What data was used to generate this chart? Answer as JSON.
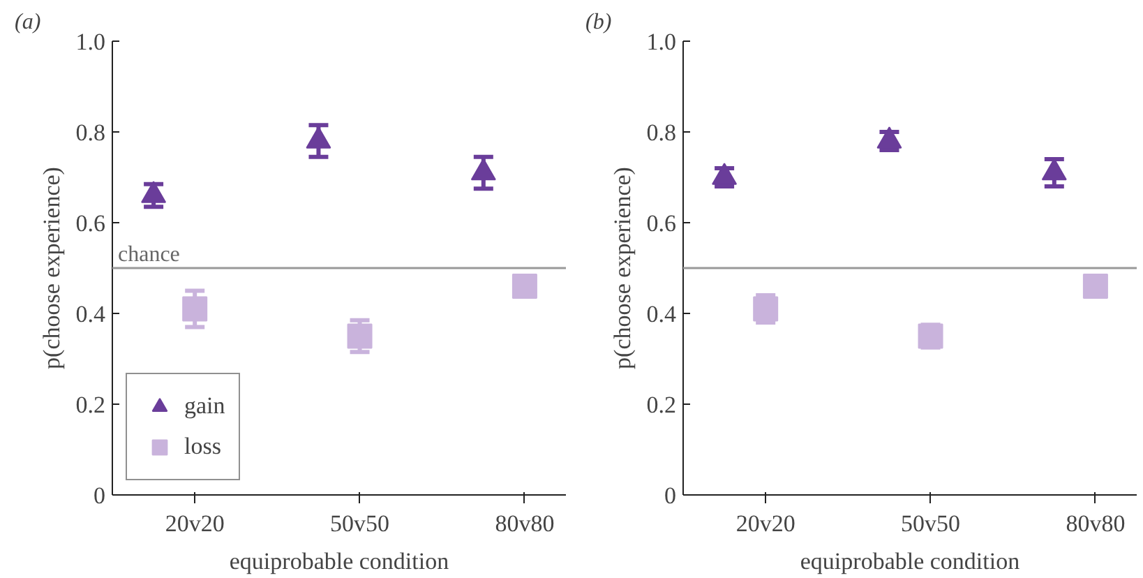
{
  "chart_data": [
    {
      "type": "scatter",
      "title": "(a)",
      "xlabel": "equiprobable condition",
      "ylabel": "p(choose experience)",
      "categories": [
        "20v20",
        "50v50",
        "80v80"
      ],
      "series": [
        {
          "name": "gain",
          "color": "#6a3d9a",
          "marker": "triangle",
          "values": [
            0.66,
            0.78,
            0.71
          ],
          "errors": [
            0.025,
            0.035,
            0.035
          ]
        },
        {
          "name": "loss",
          "color": "#c9b3dc",
          "marker": "square",
          "values": [
            0.41,
            0.35,
            0.46
          ],
          "errors": [
            0.04,
            0.035,
            0.015
          ]
        }
      ],
      "ylim": [
        0,
        1
      ],
      "yticks": [
        0,
        0.2,
        0.4,
        0.6,
        0.8,
        {
          "value": 1,
          "label": "1.0"
        }
      ],
      "ref_lines": [
        {
          "axis": "y",
          "value": 0.5,
          "label": "chance",
          "color": "#999999"
        }
      ],
      "grid": false,
      "legend": "bottom left"
    },
    {
      "type": "scatter",
      "title": "(b)",
      "xlabel": "equiprobable condition",
      "ylabel": "p(choose experience)",
      "categories": [
        "20v20",
        "50v50",
        "80v80"
      ],
      "series": [
        {
          "color": "#6a3d9a",
          "marker": "triangle",
          "values": [
            0.7,
            0.78,
            0.71
          ],
          "errors": [
            0.02,
            0.02,
            0.03
          ]
        },
        {
          "color": "#c9b3dc",
          "marker": "square",
          "values": [
            0.41,
            0.35,
            0.46
          ],
          "errors": [
            0.03,
            0.025,
            0.01
          ]
        }
      ],
      "ylim": [
        0,
        1
      ],
      "yticks": [
        0,
        0.2,
        0.4,
        0.6,
        0.8,
        {
          "value": 1,
          "label": "1.0"
        }
      ],
      "ref_lines": [
        {
          "axis": "y",
          "value": 0.5,
          "color": "#999999"
        }
      ],
      "grid": false,
      "legend": false
    }
  ]
}
